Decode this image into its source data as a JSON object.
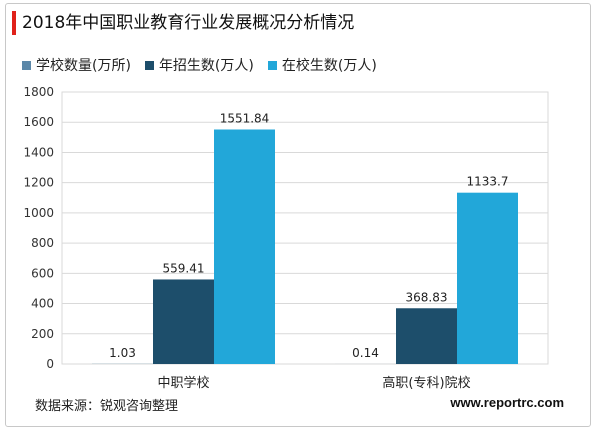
{
  "title": "2018年中国职业教育行业发展概况分析情况",
  "source": "数据来源：锐观咨询整理",
  "website": "www.reportrc.com",
  "colors": {
    "title_accent": "#e0211a",
    "series": [
      "#5b87a8",
      "#1d4e6b",
      "#22a7d9"
    ],
    "grid": "#d9d9d9"
  },
  "chart_data": {
    "type": "bar",
    "categories": [
      "中职学校",
      "高职(专科)院校"
    ],
    "series": [
      {
        "name": "学校数量(万所)",
        "values": [
          1.03,
          0.14
        ]
      },
      {
        "name": "年招生数(万人)",
        "values": [
          559.41,
          368.83
        ]
      },
      {
        "name": "在校生数(万人)",
        "values": [
          1551.84,
          1133.7
        ]
      }
    ],
    "data_labels": [
      [
        "1.03",
        "559.41",
        "1551.84"
      ],
      [
        "0.14",
        "368.83",
        "1133.7"
      ]
    ],
    "ylim": [
      0,
      1800
    ],
    "yticks": [
      "0",
      "200",
      "400",
      "600",
      "800",
      "1000",
      "1200",
      "1400",
      "1600",
      "1800"
    ],
    "grid": true,
    "legend_position": "top-left"
  }
}
